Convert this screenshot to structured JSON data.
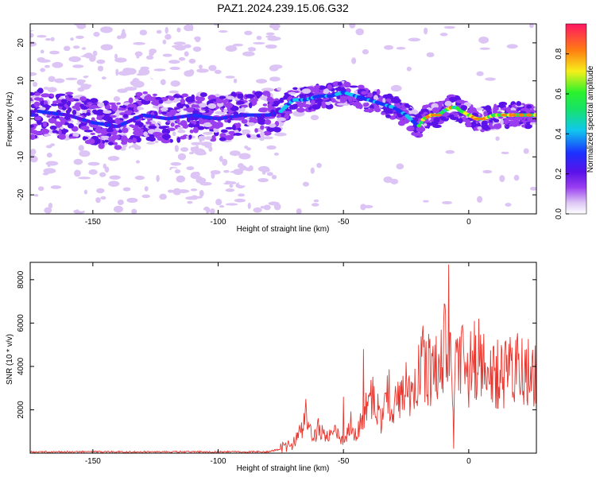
{
  "title": "PAZ1.2024.239.15.06.G32",
  "colors": {
    "trace": "#e8372f",
    "axis": "#000000",
    "background": "#ffffff"
  },
  "chart_data": [
    {
      "type": "heatmap",
      "xlabel": "Height of straight line (km)",
      "ylabel": "Frequency (Hz)",
      "xlim": [
        -175,
        27
      ],
      "ylim": [
        -25,
        25
      ],
      "xticks": [
        -150,
        -100,
        -50,
        0
      ],
      "yticks": [
        -20,
        -10,
        0,
        10,
        20
      ],
      "colorbar": {
        "label": "Normalized spectral amplitude",
        "range": [
          0,
          0.95
        ],
        "ticks": [
          0.0,
          0.2,
          0.4,
          0.6,
          0.8
        ],
        "colormap": "rainbow (white → purple → blue → cyan → green → yellow → red)"
      },
      "ridge": {
        "description": "dominant frequency track",
        "points": [
          [
            -172,
            2
          ],
          [
            -160,
            1
          ],
          [
            -150,
            -1
          ],
          [
            -140,
            -2
          ],
          [
            -130,
            1
          ],
          [
            -120,
            0
          ],
          [
            -110,
            1
          ],
          [
            -100,
            0
          ],
          [
            -90,
            1
          ],
          [
            -80,
            1
          ],
          [
            -75,
            2
          ],
          [
            -70,
            5
          ],
          [
            -65,
            5
          ],
          [
            -60,
            6
          ],
          [
            -55,
            6
          ],
          [
            -50,
            7
          ],
          [
            -45,
            6
          ],
          [
            -40,
            5
          ],
          [
            -35,
            4
          ],
          [
            -30,
            3
          ],
          [
            -25,
            1
          ],
          [
            -20,
            -2
          ],
          [
            -18,
            0
          ],
          [
            -15,
            1
          ],
          [
            -12,
            1
          ],
          [
            -10,
            2
          ],
          [
            -7,
            3
          ],
          [
            -5,
            3
          ],
          [
            -3,
            2
          ],
          [
            0,
            1
          ],
          [
            3,
            0
          ],
          [
            6,
            0
          ],
          [
            10,
            1
          ],
          [
            15,
            1
          ],
          [
            20,
            1
          ],
          [
            27,
            1
          ]
        ]
      }
    },
    {
      "type": "line",
      "xlabel": "Height of straight line (km)",
      "ylabel": "SNR (10 * v/v)",
      "xlim": [
        -175,
        27
      ],
      "ylim": [
        0,
        8800
      ],
      "xticks": [
        -150,
        -100,
        -50,
        0
      ],
      "yticks": [
        2000,
        4000,
        6000,
        8000
      ],
      "series": [
        {
          "color": "#e8372f",
          "points": [
            [
              -175,
              60
            ],
            [
              -150,
              60
            ],
            [
              -120,
              60
            ],
            [
              -100,
              60
            ],
            [
              -80,
              60
            ],
            [
              -75,
              200
            ],
            [
              -70,
              400
            ],
            [
              -65,
              1500
            ],
            [
              -62,
              600
            ],
            [
              -60,
              1200
            ],
            [
              -57,
              800
            ],
            [
              -53,
              900
            ],
            [
              -50,
              500
            ],
            [
              -47,
              1500
            ],
            [
              -45,
              700
            ],
            [
              -42,
              1800
            ],
            [
              -40,
              2200
            ],
            [
              -38,
              2500
            ],
            [
              -35,
              1500
            ],
            [
              -32,
              2800
            ],
            [
              -30,
              2000
            ],
            [
              -27,
              3100
            ],
            [
              -25,
              2400
            ],
            [
              -22,
              3300
            ],
            [
              -20,
              3500
            ],
            [
              -18,
              4200
            ],
            [
              -16,
              3800
            ],
            [
              -14,
              3400
            ],
            [
              -12,
              4400
            ],
            [
              -10,
              4800
            ],
            [
              -9,
              5400
            ],
            [
              -8,
              3800
            ],
            [
              -7,
              4800
            ],
            [
              -6,
              3000
            ],
            [
              -5,
              4200
            ],
            [
              -4,
              4300
            ],
            [
              -2,
              4500
            ],
            [
              0,
              3600
            ],
            [
              2,
              4400
            ],
            [
              4,
              3700
            ],
            [
              6,
              4100
            ],
            [
              8,
              3500
            ],
            [
              10,
              3800
            ],
            [
              12,
              3600
            ],
            [
              15,
              3700
            ],
            [
              18,
              3800
            ],
            [
              21,
              3900
            ],
            [
              24,
              3800
            ],
            [
              27,
              3950
            ]
          ],
          "spikes": [
            [
              -65,
              2500
            ],
            [
              -50,
              2600
            ],
            [
              -42,
              4800
            ],
            [
              -25,
              4200
            ],
            [
              -20,
              5000
            ],
            [
              -16,
              5500
            ],
            [
              -8,
              8700
            ],
            [
              -7,
              4000
            ],
            [
              -6,
              200
            ],
            [
              -3,
              5500
            ],
            [
              4,
              6200
            ],
            [
              6,
              5500
            ]
          ]
        }
      ]
    }
  ]
}
